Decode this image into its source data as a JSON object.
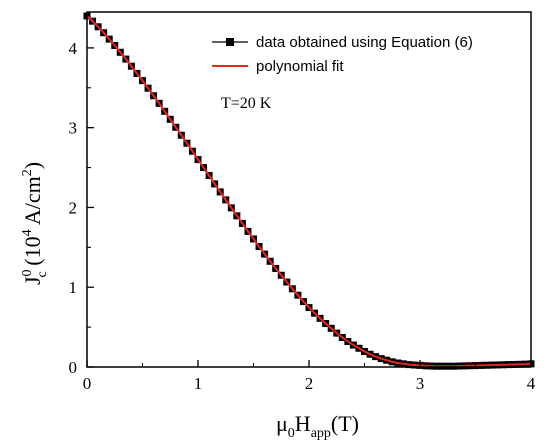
{
  "chart_data": {
    "type": "scatter",
    "xlim": [
      0,
      4
    ],
    "ylim": [
      0,
      4.45
    ],
    "x_ticks": [
      "0",
      "1",
      "2",
      "3",
      "4"
    ],
    "y_ticks": [
      "0",
      "1",
      "2",
      "3",
      "4"
    ],
    "xlabel": {
      "main": "μ",
      "sub1": "0",
      "main2": "H",
      "sub2": "app",
      "tail": "(T)"
    },
    "ylabel": {
      "main": "J",
      "sup1": "0",
      "sub1": "c",
      "mid": " (10",
      "sup2": "4",
      "mid2": " A/cm",
      "sup3": "2",
      "tail": ")"
    },
    "annotation": "T=20 K",
    "series": [
      {
        "name": "data obtained using Equation (6)",
        "color": "#000000",
        "marker": "square",
        "x": [
          0,
          0.05,
          0.1,
          0.15,
          0.2,
          0.25,
          0.3,
          0.35,
          0.4,
          0.45,
          0.5,
          0.55,
          0.6,
          0.65,
          0.7,
          0.75,
          0.8,
          0.85,
          0.9,
          0.95,
          1.0,
          1.05,
          1.1,
          1.15,
          1.2,
          1.25,
          1.3,
          1.35,
          1.4,
          1.45,
          1.5,
          1.55,
          1.6,
          1.65,
          1.7,
          1.75,
          1.8,
          1.85,
          1.9,
          1.95,
          2.0,
          2.05,
          2.1,
          2.15,
          2.2,
          2.25,
          2.3,
          2.35,
          2.4,
          2.45,
          2.5,
          2.55,
          2.6,
          2.65,
          2.7,
          2.75,
          2.8,
          2.85,
          2.9,
          2.95,
          3.0,
          3.05,
          3.1,
          3.15,
          3.2,
          3.25,
          3.3,
          3.35,
          3.4,
          3.45,
          3.5,
          3.55,
          3.6,
          3.65,
          3.7,
          3.75,
          3.8,
          3.85,
          3.9,
          3.95,
          4.0
        ],
        "values": [
          4.4,
          4.335,
          4.265,
          4.19,
          4.11,
          4.03,
          3.945,
          3.86,
          3.77,
          3.68,
          3.59,
          3.495,
          3.4,
          3.305,
          3.205,
          3.105,
          3.005,
          2.905,
          2.805,
          2.705,
          2.6,
          2.5,
          2.4,
          2.295,
          2.195,
          2.095,
          1.995,
          1.895,
          1.8,
          1.7,
          1.605,
          1.51,
          1.415,
          1.325,
          1.235,
          1.15,
          1.065,
          0.98,
          0.9,
          0.82,
          0.745,
          0.675,
          0.61,
          0.545,
          0.485,
          0.425,
          0.37,
          0.32,
          0.275,
          0.235,
          0.195,
          0.16,
          0.13,
          0.105,
          0.085,
          0.065,
          0.05,
          0.04,
          0.03,
          0.025,
          0.02,
          0.015,
          0.012,
          0.01,
          0.01,
          0.01,
          0.01,
          0.012,
          0.014,
          0.016,
          0.018,
          0.02,
          0.022,
          0.024,
          0.026,
          0.028,
          0.03,
          0.032,
          0.034,
          0.036,
          0.04
        ]
      },
      {
        "name": "polynomial fit",
        "color": "#e8251f",
        "marker": "line",
        "x": [
          0,
          0.05,
          0.1,
          0.15,
          0.2,
          0.25,
          0.3,
          0.35,
          0.4,
          0.45,
          0.5,
          0.55,
          0.6,
          0.65,
          0.7,
          0.75,
          0.8,
          0.85,
          0.9,
          0.95,
          1.0,
          1.05,
          1.1,
          1.15,
          1.2,
          1.25,
          1.3,
          1.35,
          1.4,
          1.45,
          1.5,
          1.55,
          1.6,
          1.65,
          1.7,
          1.75,
          1.8,
          1.85,
          1.9,
          1.95,
          2.0,
          2.05,
          2.1,
          2.15,
          2.2,
          2.25,
          2.3,
          2.35,
          2.4,
          2.45,
          2.5,
          2.55,
          2.6,
          2.65,
          2.7,
          2.75,
          2.8,
          2.85,
          2.9,
          2.95,
          3.0,
          3.05,
          3.1,
          3.15,
          3.2,
          3.25,
          3.3,
          3.35,
          3.4,
          3.45,
          3.5,
          3.55,
          3.6,
          3.65,
          3.7,
          3.75,
          3.8,
          3.85,
          3.9,
          3.95,
          4.0
        ],
        "values": [
          4.4,
          4.335,
          4.265,
          4.19,
          4.11,
          4.03,
          3.945,
          3.86,
          3.77,
          3.68,
          3.59,
          3.495,
          3.4,
          3.305,
          3.205,
          3.105,
          3.005,
          2.905,
          2.805,
          2.705,
          2.6,
          2.5,
          2.4,
          2.295,
          2.195,
          2.095,
          1.995,
          1.895,
          1.8,
          1.7,
          1.605,
          1.51,
          1.415,
          1.325,
          1.235,
          1.15,
          1.065,
          0.98,
          0.9,
          0.82,
          0.745,
          0.675,
          0.61,
          0.545,
          0.485,
          0.425,
          0.37,
          0.32,
          0.275,
          0.235,
          0.195,
          0.16,
          0.13,
          0.105,
          0.085,
          0.065,
          0.05,
          0.04,
          0.03,
          0.025,
          0.02,
          0.015,
          0.012,
          0.01,
          0.01,
          0.01,
          0.01,
          0.012,
          0.014,
          0.016,
          0.018,
          0.02,
          0.022,
          0.024,
          0.026,
          0.028,
          0.03,
          0.032,
          0.034,
          0.036,
          0.04
        ]
      }
    ],
    "legend": [
      "data obtained using Equation (6)",
      "polynomial fit"
    ],
    "legend_placement": "top-right",
    "grid": false
  }
}
